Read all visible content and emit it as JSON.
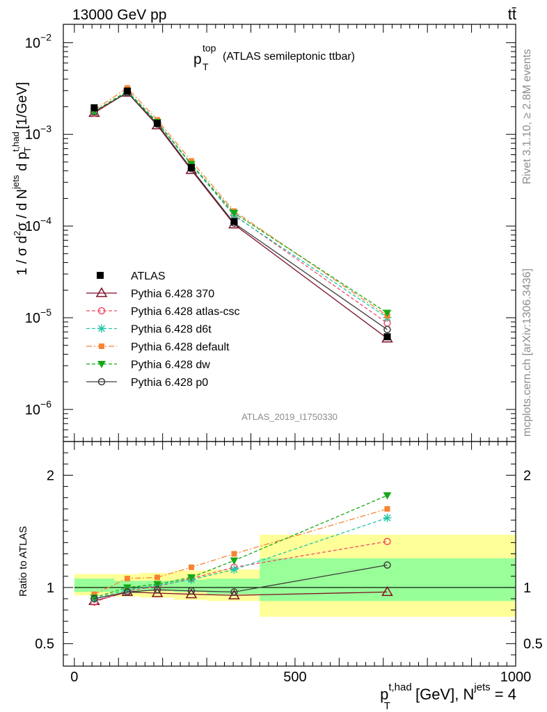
{
  "header": {
    "left": "13000 GeV pp",
    "right": "tt̄"
  },
  "side_text": {
    "rivet": "Rivet 3.1.10, ≥ 2.8M events",
    "mcplots": "mcplots.cern.ch [arXiv:1306.3436]"
  },
  "chart_data": {
    "type": "line",
    "title": {
      "main": "p",
      "sup": "top",
      "sub": "T",
      "desc": "(ATLAS semileptonic ttbar)"
    },
    "analysis_id": "ATLAS_2019_I1750330",
    "xlabel": {
      "main": "p",
      "sup": "t,had",
      "sub": "T",
      "rest": " [GeV], N",
      "sup2": "jets",
      "tail": " = 4"
    },
    "ylabel": "1 / σ d²σ / d N^jets d p_T^t,had [1/GeV]",
    "ylabel_parts": {
      "a": "1 / σ d",
      "a_sup": "2",
      "b": "σ / d N",
      "b_sup": "jets",
      "c": " d p",
      "c_sup": "t,had",
      "c_sub": "T",
      "d": " [1/GeV]"
    },
    "ratio_ylabel": "Ratio to ATLAS",
    "xlim": [
      -25,
      1000
    ],
    "ylim_log": [
      -6.35,
      -1.8
    ],
    "ratio_ylim": [
      0.3,
      2.3
    ],
    "xticks": [
      {
        "v": 0,
        "label": "0"
      },
      {
        "v": 500,
        "label": "500"
      },
      {
        "v": 1000,
        "label": "1000"
      }
    ],
    "yticks": [
      {
        "exp": -2,
        "base": "10",
        "sup": "−2"
      },
      {
        "exp": -3,
        "base": "10",
        "sup": "−3"
      },
      {
        "exp": -4,
        "base": "10",
        "sup": "−4"
      },
      {
        "exp": -5,
        "base": "10",
        "sup": "−5"
      },
      {
        "exp": -6,
        "base": "10",
        "sup": "−6"
      }
    ],
    "ratio_yticks": [
      {
        "v": 0.5,
        "label": "0.5"
      },
      {
        "v": 1,
        "label": "1"
      },
      {
        "v": 2,
        "label": "2"
      }
    ],
    "x": [
      45,
      120,
      188,
      265,
      362,
      709
    ],
    "bin_edges": [
      0,
      90,
      150,
      225,
      300,
      420,
      1000
    ],
    "data": {
      "name": "ATLAS",
      "values": [
        0.00195,
        0.00297,
        0.00132,
        0.000435,
        0.000112,
        6.2e-06
      ],
      "band_inner": [
        [
          0.96,
          1.08
        ],
        [
          0.95,
          1.06
        ],
        [
          0.97,
          1.06
        ],
        [
          0.96,
          1.07
        ],
        [
          0.94,
          1.08
        ],
        [
          0.88,
          1.26
        ]
      ],
      "band_outer": [
        [
          0.93,
          1.12
        ],
        [
          0.92,
          1.12
        ],
        [
          0.91,
          1.13
        ],
        [
          0.89,
          1.15
        ],
        [
          0.88,
          1.16
        ],
        [
          0.74,
          1.47
        ]
      ]
    },
    "series": [
      {
        "name": "Pythia 6.428 370",
        "color": "#7d0f24",
        "dash": "",
        "marker": "triangle-open",
        "ratio": [
          0.88,
          0.96,
          0.95,
          0.94,
          0.93,
          0.96
        ]
      },
      {
        "name": "Pythia 6.428 atlas-csc",
        "color": "#ee4d65",
        "dash": "5,3",
        "marker": "circle-open",
        "ratio": [
          0.87,
          0.97,
          1.01,
          1.08,
          1.18,
          1.41
        ]
      },
      {
        "name": "Pythia 6.428 d6t",
        "color": "#1fc4a8",
        "dash": "5,3",
        "marker": "star",
        "ratio": [
          0.9,
          0.98,
          1.02,
          1.07,
          1.16,
          1.62
        ]
      },
      {
        "name": "Pythia 6.428 default",
        "color": "#f68532",
        "dash": "8,3,2,3",
        "marker": "square",
        "ratio": [
          0.94,
          1.08,
          1.09,
          1.18,
          1.3,
          1.7
        ]
      },
      {
        "name": "Pythia 6.428 dw",
        "color": "#16a816",
        "dash": "5,3",
        "marker": "triangle-down",
        "ratio": [
          0.91,
          1.0,
          1.03,
          1.09,
          1.24,
          1.82
        ]
      },
      {
        "name": "Pythia 6.428 p0",
        "color": "#3c3c3c",
        "dash": "",
        "marker": "circle-open",
        "ratio": [
          0.9,
          0.96,
          0.98,
          0.97,
          0.96,
          1.2
        ]
      }
    ]
  }
}
